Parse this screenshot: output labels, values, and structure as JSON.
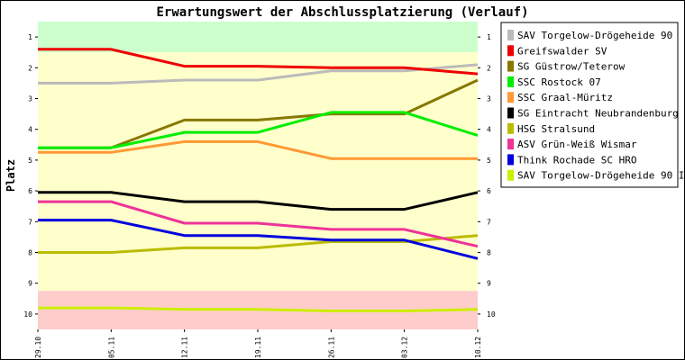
{
  "chart_data": {
    "type": "line",
    "title": "Erwartungswert der Abschlussplatzierung (Verlauf)",
    "ylabel": "Platz",
    "xlabel": "",
    "ylim": [
      0.5,
      10.5
    ],
    "y_inverted": true,
    "yticks": [
      1,
      2,
      3,
      4,
      5,
      6,
      7,
      8,
      9,
      10
    ],
    "x": [
      "29.10",
      "05.11",
      "12.11",
      "19.11",
      "26.11",
      "03.12",
      "10.12"
    ],
    "grid": false,
    "legend_position": "right",
    "zones": [
      {
        "from": 0.5,
        "to": 1.5,
        "color": "#ccffcc"
      },
      {
        "from": 1.5,
        "to": 9.25,
        "color": "#ffffcc"
      },
      {
        "from": 9.25,
        "to": 10.5,
        "color": "#ffcccc"
      }
    ],
    "series": [
      {
        "name": "SAV Torgelow-Drögeheide 90",
        "color": "#bbbbbb",
        "values": [
          2.5,
          2.5,
          2.4,
          2.4,
          2.1,
          2.1,
          1.9
        ]
      },
      {
        "name": "Greifswalder SV",
        "color": "#ee0000",
        "values": [
          1.4,
          1.4,
          1.95,
          1.95,
          2.0,
          2.0,
          2.2
        ]
      },
      {
        "name": "SG Güstrow/Teterow",
        "color": "#887700",
        "values": [
          4.6,
          4.6,
          3.7,
          3.7,
          3.5,
          3.5,
          2.4
        ]
      },
      {
        "name": "SSC Rostock 07",
        "color": "#00ee00",
        "values": [
          4.6,
          4.6,
          4.1,
          4.1,
          3.45,
          3.45,
          4.2
        ]
      },
      {
        "name": "SSC Graal-Müritz",
        "color": "#ff9933",
        "values": [
          4.75,
          4.75,
          4.4,
          4.4,
          4.95,
          4.95,
          4.95
        ]
      },
      {
        "name": "SG Eintracht Neubrandenburg",
        "color": "#000000",
        "values": [
          6.05,
          6.05,
          6.35,
          6.35,
          6.6,
          6.6,
          6.05
        ]
      },
      {
        "name": "HSG Stralsund",
        "color": "#bbbb00",
        "values": [
          8.0,
          8.0,
          7.85,
          7.85,
          7.65,
          7.65,
          7.45
        ]
      },
      {
        "name": "ASV Grün-Weiß Wismar",
        "color": "#ee3399",
        "values": [
          6.35,
          6.35,
          7.05,
          7.05,
          7.25,
          7.25,
          7.8
        ]
      },
      {
        "name": "Think Rochade   SC HRO",
        "color": "#0000dd",
        "values": [
          6.95,
          6.95,
          7.45,
          7.45,
          7.6,
          7.6,
          8.2
        ]
      },
      {
        "name": "SAV Torgelow-Drögeheide 90 II",
        "color": "#ccee00",
        "values": [
          9.8,
          9.8,
          9.85,
          9.85,
          9.9,
          9.9,
          9.85
        ]
      }
    ]
  }
}
